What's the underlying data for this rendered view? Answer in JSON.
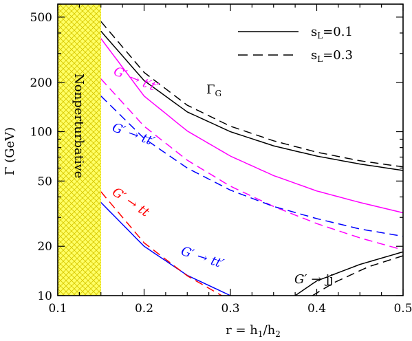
{
  "chart_data": {
    "type": "line",
    "xlabel": "r = h₁/h₂",
    "ylabel": "Γ (GeV)",
    "xlim": [
      0.1,
      0.5
    ],
    "ylim": [
      10,
      600
    ],
    "yscale": "log",
    "x_ticks": [
      "0.1",
      "0.2",
      "0.3",
      "0.4",
      "0.5"
    ],
    "y_ticks": [
      "10",
      "20",
      "50",
      "100",
      "200",
      "500"
    ],
    "shaded_region": {
      "x_range": [
        0.1,
        0.15
      ],
      "label": "Nonperturbative",
      "color": "#ffff66"
    },
    "legend": {
      "position": "top-right",
      "entries": [
        {
          "label": "sʟ=0.1",
          "style": "solid"
        },
        {
          "label": "sʟ=0.3",
          "style": "dashed"
        }
      ]
    },
    "series": [
      {
        "color": "#000000",
        "style": "solid",
        "x": [
          0.15,
          0.2,
          0.25,
          0.3,
          0.35,
          0.4,
          0.45,
          0.5
        ],
        "values": [
          410,
          205,
          132,
          100,
          82,
          71,
          63.5,
          58
        ]
      },
      {
        "color": "#000000",
        "style": "dashed",
        "x": [
          0.15,
          0.2,
          0.25,
          0.3,
          0.35,
          0.4,
          0.45,
          0.5
        ],
        "values": [
          470,
          230,
          145,
          108,
          88,
          75,
          66.5,
          61
        ]
      },
      {
        "color": "#ff00ff",
        "style": "solid",
        "x": [
          0.15,
          0.2,
          0.25,
          0.3,
          0.35,
          0.4,
          0.45,
          0.5
        ],
        "values": [
          370,
          165,
          101,
          71,
          54,
          43.5,
          37,
          32
        ]
      },
      {
        "color": "#ff00ff",
        "style": "dashed",
        "x": [
          0.15,
          0.2,
          0.25,
          0.3,
          0.35,
          0.4,
          0.45,
          0.5
        ],
        "values": [
          210,
          108,
          67,
          46.5,
          35,
          27.5,
          22.5,
          19
        ]
      },
      {
        "color": "#0000ff",
        "style": "dashed",
        "x": [
          0.15,
          0.2,
          0.25,
          0.3,
          0.35,
          0.4,
          0.45,
          0.5
        ],
        "values": [
          165,
          91,
          60,
          44,
          35,
          29.5,
          25.5,
          23
        ]
      },
      {
        "color": "#0000ff",
        "style": "solid",
        "x": [
          0.15,
          0.2,
          0.25,
          0.3
        ],
        "values": [
          37,
          20,
          13.3,
          10
        ]
      },
      {
        "color": "#ff0000",
        "style": "dashed",
        "x": [
          0.15,
          0.2,
          0.25,
          0.29
        ],
        "values": [
          43,
          21,
          13.2,
          10
        ]
      },
      {
        "color": "#000000",
        "style": "solid",
        "x": [
          0.375,
          0.4,
          0.45,
          0.5
        ],
        "values": [
          10,
          12.3,
          15.5,
          18.5
        ]
      },
      {
        "color": "#000000",
        "style": "dashed",
        "x": [
          0.395,
          0.42,
          0.46,
          0.5
        ],
        "values": [
          10,
          12,
          15,
          17.5
        ]
      }
    ],
    "annotations": {
      "gamma_g": "Γ",
      "gamma_g_sub": "G",
      "arrow": "→",
      "magenta_left": "G′",
      "magenta_right": "t′t′",
      "blue_left": "G′",
      "blue_right": "tt′",
      "red_left": "G′",
      "red_right": "tt",
      "blue_low_left": "G′",
      "blue_low_right": "tt′",
      "jj_left": "G′",
      "jj_right": "jj"
    },
    "colors": {
      "magenta": "#ff00ff",
      "blue": "#0000ff",
      "red": "#ff0000",
      "black": "#000000"
    }
  }
}
